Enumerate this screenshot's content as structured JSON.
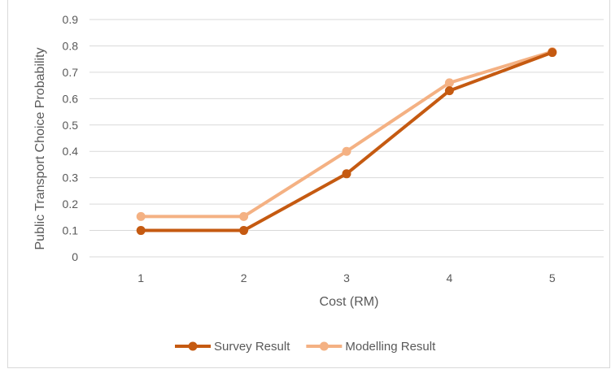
{
  "chart_data": {
    "type": "line",
    "title": "",
    "xlabel": "Cost (RM)",
    "ylabel": "Public Transport Choice Probability",
    "categories": [
      "1",
      "2",
      "3",
      "4",
      "5"
    ],
    "y_ticks": [
      "0",
      "0.1",
      "0.2",
      "0.3",
      "0.4",
      "0.5",
      "0.6",
      "0.7",
      "0.8",
      "0.9"
    ],
    "ylim": [
      0,
      0.9
    ],
    "grid": true,
    "legend_position": "bottom",
    "series": [
      {
        "name": "Survey Result",
        "color": "#c55a11",
        "values": [
          0.1,
          0.1,
          0.315,
          0.63,
          0.775
        ]
      },
      {
        "name": "Modelling Result",
        "color": "#f4b183",
        "values": [
          0.153,
          0.153,
          0.4,
          0.66,
          0.778
        ]
      }
    ]
  }
}
